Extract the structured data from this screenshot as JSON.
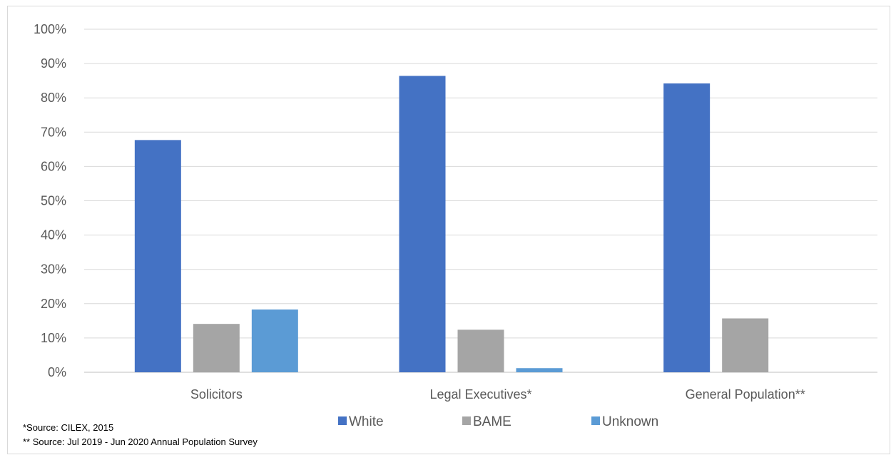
{
  "chart_data": {
    "type": "bar",
    "categories": [
      "Solicitors",
      "Legal Executives*",
      "General Population**"
    ],
    "series": [
      {
        "name": "White",
        "color": "#4472c4",
        "values": [
          67.7,
          86.4,
          84.2
        ]
      },
      {
        "name": "BAME",
        "color": "#a5a5a5",
        "values": [
          14.1,
          12.4,
          15.7
        ]
      },
      {
        "name": "Unknown",
        "color": "#5b9bd5",
        "values": [
          18.3,
          1.2,
          null
        ]
      }
    ],
    "ylim": [
      0,
      100
    ],
    "yticks": [
      "0%",
      "10%",
      "20%",
      "30%",
      "40%",
      "50%",
      "60%",
      "70%",
      "80%",
      "90%",
      "100%"
    ],
    "grid": true,
    "legend_position": "bottom",
    "title": "",
    "xlabel": "",
    "ylabel": ""
  },
  "footnotes": {
    "note1": "*Source: CILEX, 2015",
    "note2": "** Source: Jul 2019 - Jun 2020  Annual Population Survey"
  }
}
